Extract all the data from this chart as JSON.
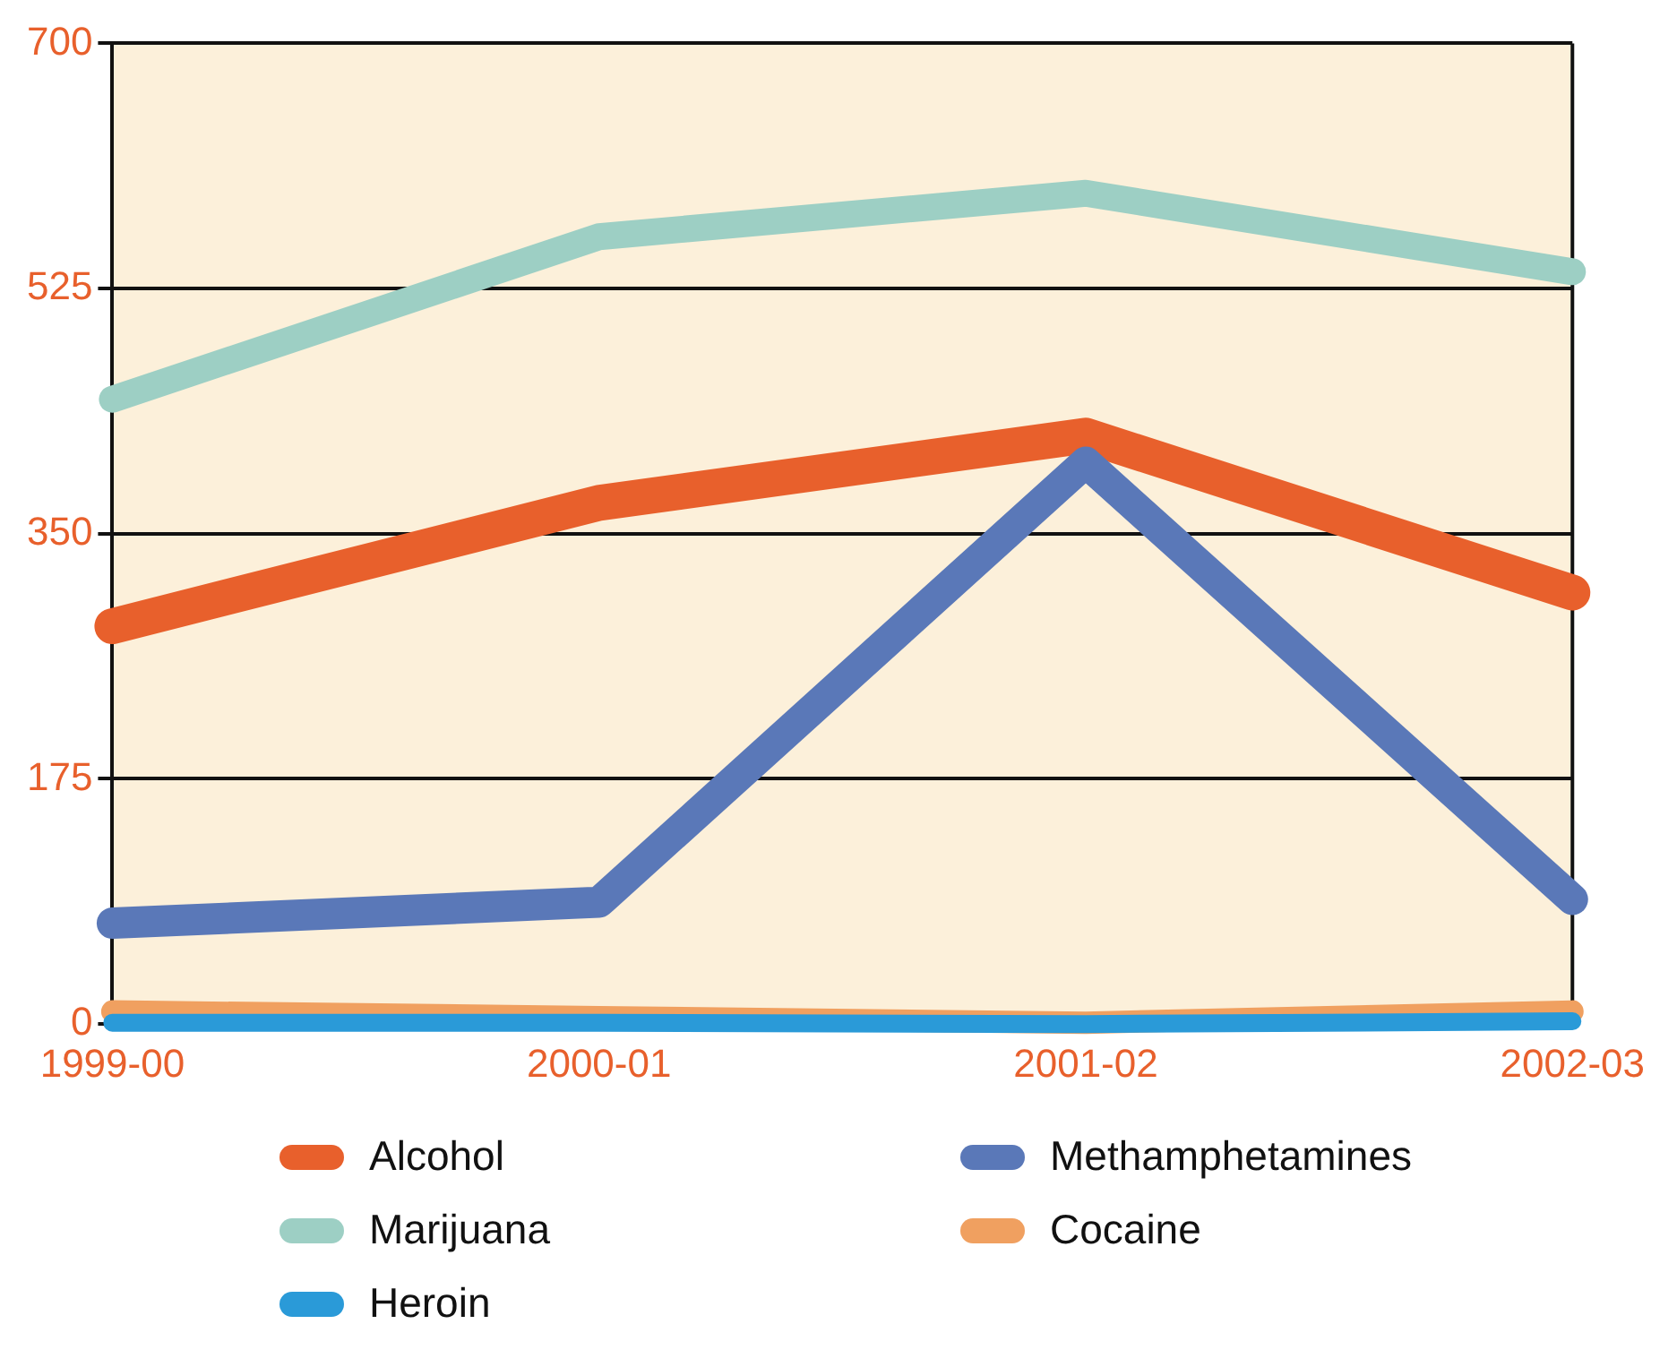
{
  "chart_data": {
    "type": "line",
    "categories": [
      "1999-00",
      "2000-01",
      "2001-02",
      "2002-03"
    ],
    "series": [
      {
        "name": "Alcohol",
        "color": "#e8602c",
        "values": [
          284,
          372,
          420,
          308
        ]
      },
      {
        "name": "Methamphetamines",
        "color": "#5a78b8",
        "values": [
          72,
          87,
          401,
          89
        ]
      },
      {
        "name": "Marijuana",
        "color": "#9dcfc4",
        "values": [
          446,
          562,
          593,
          537
        ]
      },
      {
        "name": "Cocaine",
        "color": "#f0a060",
        "values": [
          9,
          5,
          1,
          9
        ]
      },
      {
        "name": "Heroin",
        "color": "#2a9ad8",
        "values": [
          1,
          1,
          0,
          2
        ]
      }
    ],
    "ylim": [
      0,
      700
    ],
    "yticks": [
      0,
      175,
      350,
      525,
      700
    ],
    "grid": "y",
    "legend": "bottom",
    "marker": "none",
    "line_style": "solid"
  }
}
